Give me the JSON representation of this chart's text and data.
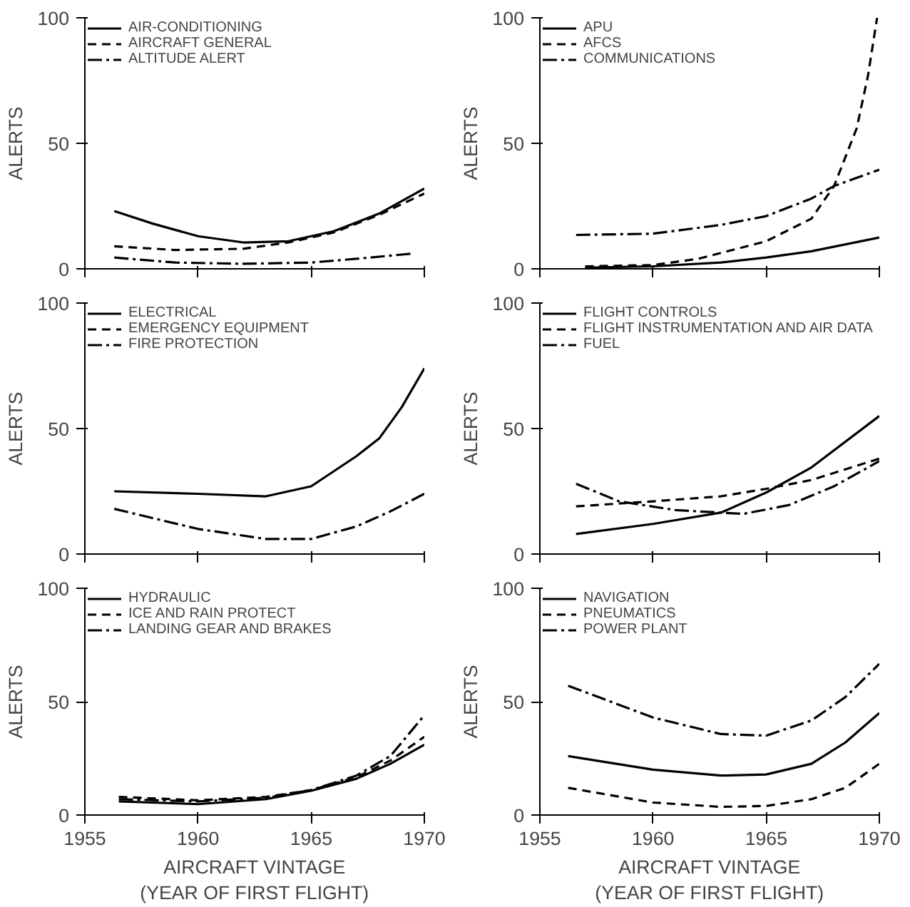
{
  "chart_data": [
    {
      "type": "line",
      "ylabel": "ALERTS",
      "xlim": [
        1955,
        1970
      ],
      "xticks": [
        1955,
        1960,
        1965,
        1970
      ],
      "ylim": [
        0,
        100
      ],
      "yticks": [
        0,
        50,
        100
      ],
      "tick_labels": "y",
      "legend": "top left",
      "series": [
        {
          "name": "AIR-CONDITIONING",
          "color": "#000000",
          "line_style": "solid",
          "x": [
            1956.3,
            1958,
            1960,
            1962,
            1964,
            1966,
            1968,
            1970
          ],
          "values": [
            23,
            18,
            13,
            10.5,
            11,
            15,
            22,
            32
          ]
        },
        {
          "name": "AIRCRAFT GENERAL",
          "color": "#000000",
          "line_style": "dashed",
          "x": [
            1956.3,
            1959,
            1962,
            1964,
            1966,
            1968,
            1970
          ],
          "values": [
            9,
            7.5,
            8,
            10.5,
            14.5,
            21.5,
            30
          ]
        },
        {
          "name": "ALTITUDE ALERT",
          "color": "#000000",
          "line_style": "dashdot",
          "x": [
            1956.3,
            1959,
            1962,
            1965,
            1967,
            1969.4
          ],
          "values": [
            4.5,
            2.5,
            2,
            2.5,
            4,
            6
          ]
        }
      ]
    },
    {
      "type": "line",
      "ylabel": "ALERTS",
      "xlim": [
        1955,
        1970
      ],
      "xticks": [
        1955,
        1960,
        1965,
        1970
      ],
      "ylim": [
        0,
        100
      ],
      "yticks": [
        0,
        50,
        100
      ],
      "tick_labels": "y",
      "legend": "top left",
      "series": [
        {
          "name": "APU",
          "color": "#000000",
          "line_style": "solid",
          "x": [
            1957,
            1960,
            1963,
            1965,
            1967,
            1970
          ],
          "values": [
            0.5,
            1,
            2.5,
            4.5,
            7,
            12.5
          ]
        },
        {
          "name": "AFCS",
          "color": "#000000",
          "line_style": "dashed",
          "x": [
            1957,
            1960,
            1962,
            1965,
            1967,
            1968,
            1969,
            1969.5,
            1969.9
          ],
          "values": [
            1,
            1.5,
            4,
            11,
            20,
            33,
            56,
            77,
            100
          ]
        },
        {
          "name": "COMMUNICATIONS",
          "color": "#000000",
          "line_style": "dashdot",
          "x": [
            1956.6,
            1960,
            1963,
            1965,
            1967,
            1968,
            1970
          ],
          "values": [
            13.5,
            14,
            17.5,
            21,
            28,
            33,
            39.5
          ]
        }
      ]
    },
    {
      "type": "line",
      "ylabel": "ALERTS",
      "xlim": [
        1955,
        1970
      ],
      "xticks": [
        1955,
        1960,
        1965,
        1970
      ],
      "ylim": [
        0,
        100
      ],
      "yticks": [
        0,
        50,
        100
      ],
      "tick_labels": "y",
      "legend": "top left",
      "series": [
        {
          "name": "ELECTRICAL",
          "color": "#000000",
          "line_style": "solid",
          "x": [
            1956.3,
            1960,
            1963,
            1965,
            1967,
            1968,
            1969,
            1970
          ],
          "values": [
            25,
            24,
            23,
            27,
            39,
            46,
            58.5,
            74
          ]
        },
        {
          "name": "EMERGENCY EQUIPMENT",
          "color": "#000000",
          "line_style": "dashed"
        },
        {
          "name": "FIRE PROTECTION",
          "color": "#000000",
          "line_style": "dashdot",
          "x": [
            1956.3,
            1960,
            1963,
            1965,
            1967,
            1968.5,
            1970
          ],
          "values": [
            18,
            10,
            6,
            6,
            11,
            17,
            24
          ]
        }
      ]
    },
    {
      "type": "line",
      "ylabel": "ALERTS",
      "xlim": [
        1955,
        1970
      ],
      "xticks": [
        1955,
        1960,
        1965,
        1970
      ],
      "ylim": [
        0,
        100
      ],
      "yticks": [
        0,
        50,
        100
      ],
      "tick_labels": "y",
      "legend": "top left",
      "series": [
        {
          "name": "FLIGHT CONTROLS",
          "color": "#000000",
          "line_style": "solid",
          "x": [
            1956.6,
            1960,
            1963,
            1965,
            1967,
            1970
          ],
          "values": [
            8,
            12,
            16.5,
            24.5,
            34.5,
            55
          ]
        },
        {
          "name": "FLIGHT INSTRUMENTATION AND AIR DATA",
          "color": "#000000",
          "line_style": "dashed",
          "x": [
            1956.6,
            1960,
            1963,
            1965,
            1967,
            1970
          ],
          "values": [
            19,
            21,
            23,
            26,
            29.5,
            38
          ]
        },
        {
          "name": "FUEL",
          "color": "#000000",
          "line_style": "dashdot",
          "x": [
            1956.6,
            1958.5,
            1961,
            1964,
            1966,
            1968,
            1970
          ],
          "values": [
            28,
            21,
            17.5,
            16,
            19.5,
            27,
            37
          ]
        }
      ]
    },
    {
      "type": "line",
      "ylabel": "ALERTS",
      "xlabel": "AIRCRAFT VINTAGE\n(YEAR OF FIRST FLIGHT)",
      "xlim": [
        1955,
        1970
      ],
      "xticks": [
        1955,
        1960,
        1965,
        1970
      ],
      "ylim": [
        0,
        100
      ],
      "yticks": [
        0,
        50,
        100
      ],
      "legend": "top left",
      "series": [
        {
          "name": "HYDRAULIC",
          "color": "#000000",
          "line_style": "solid",
          "x": [
            1956.5,
            1960,
            1963,
            1965,
            1967,
            1968.5,
            1970
          ],
          "values": [
            6,
            4.8,
            7,
            10.7,
            16,
            22.6,
            31
          ]
        },
        {
          "name": "ICE AND RAIN PROTECT",
          "color": "#000000",
          "line_style": "dashed",
          "x": [
            1956.5,
            1960,
            1963,
            1965,
            1967,
            1968.5,
            1970
          ],
          "values": [
            8,
            6.5,
            8,
            11,
            16.7,
            24,
            34.5
          ]
        },
        {
          "name": "LANDING GEAR AND BRAKES",
          "color": "#000000",
          "line_style": "dashdot",
          "x": [
            1956.5,
            1960,
            1963,
            1965,
            1967,
            1968.5,
            1970
          ],
          "values": [
            7,
            6,
            7.6,
            11,
            17.4,
            26,
            44
          ]
        }
      ]
    },
    {
      "type": "line",
      "ylabel": "ALERTS",
      "xlabel": "AIRCRAFT VINTAGE\n(YEAR OF FIRST FLIGHT)",
      "xlim": [
        1955,
        1970
      ],
      "xticks": [
        1955,
        1960,
        1965,
        1970
      ],
      "ylim": [
        0,
        100
      ],
      "yticks": [
        0,
        50,
        100
      ],
      "legend": "top left",
      "series": [
        {
          "name": "NAVIGATION",
          "color": "#000000",
          "line_style": "solid",
          "x": [
            1956.25,
            1960,
            1963,
            1965,
            1967,
            1968.5,
            1970
          ],
          "values": [
            26,
            20,
            17.4,
            17.9,
            22.6,
            32,
            45
          ]
        },
        {
          "name": "PNEUMATICS",
          "color": "#000000",
          "line_style": "dashed",
          "x": [
            1956.25,
            1960,
            1963,
            1965,
            1967,
            1968.5,
            1970
          ],
          "values": [
            12,
            5.5,
            3.6,
            4,
            7,
            12,
            22.6
          ]
        },
        {
          "name": "POWER PLANT",
          "color": "#000000",
          "line_style": "dashdot",
          "x": [
            1956.25,
            1960,
            1963,
            1965,
            1967,
            1968.5,
            1970
          ],
          "values": [
            57,
            43,
            35.7,
            35,
            41.7,
            52,
            66.7
          ]
        }
      ]
    }
  ]
}
